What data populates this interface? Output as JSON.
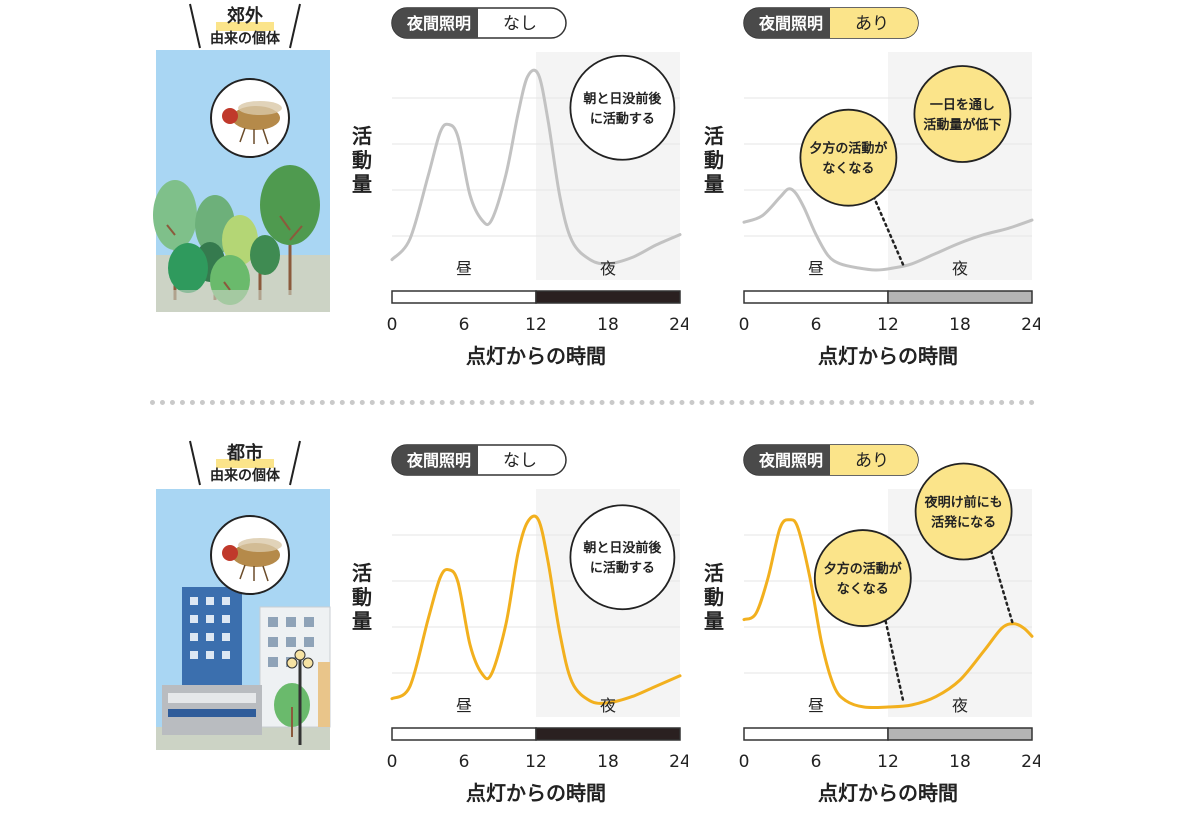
{
  "colors": {
    "suburb_curve": "#c2c2c2",
    "city_curve": "#f2b01e",
    "night_dark": "#2a2020",
    "night_gray": "#b4b4b4",
    "bubble_yellow": "#fbe48a",
    "sky": "#a9d6f3",
    "ground": "#ccd3c5",
    "badge_dark": "#4a4a4a"
  },
  "rows": [
    {
      "id": "suburb",
      "origin_title": "郊外",
      "origin_sub": "由来の個体",
      "scene": "forest",
      "panels": [
        {
          "badge_left": "夜間照明",
          "badge_right": "なし",
          "lit": false,
          "ylabel": "活動量",
          "xlabel": "点灯からの時間",
          "day_label": "昼",
          "night_label": "夜",
          "bubbles": [
            {
              "lines": [
                "朝と日没前後",
                "に活動する"
              ],
              "yellow": false,
              "cx": 19.2,
              "cy": 0.78,
              "r": 52
            }
          ],
          "pointers": []
        },
        {
          "badge_left": "夜間照明",
          "badge_right": "あり",
          "lit": true,
          "ylabel": "活動量",
          "xlabel": "点灯からの時間",
          "day_label": "昼",
          "night_label": "夜",
          "bubbles": [
            {
              "lines": [
                "夕方の活動が",
                "なくなる"
              ],
              "yellow": true,
              "cx": 8.7,
              "cy": 0.54,
              "r": 48
            },
            {
              "lines": [
                "一日を通し",
                "活動量が低下"
              ],
              "yellow": true,
              "cx": 18.2,
              "cy": 0.75,
              "r": 48
            }
          ],
          "pointers": [
            {
              "from": [
                10.6,
                0.38
              ],
              "to": [
                13.3,
                0.02
              ]
            }
          ]
        }
      ]
    },
    {
      "id": "city",
      "origin_title": "都市",
      "origin_sub": "由来の個体",
      "scene": "city",
      "panels": [
        {
          "badge_left": "夜間照明",
          "badge_right": "なし",
          "lit": false,
          "ylabel": "活動量",
          "xlabel": "点灯からの時間",
          "day_label": "昼",
          "night_label": "夜",
          "bubbles": [
            {
              "lines": [
                "朝と日没前後",
                "に活動する"
              ],
              "yellow": false,
              "cx": 19.2,
              "cy": 0.72,
              "r": 52
            }
          ],
          "pointers": []
        },
        {
          "badge_left": "夜間照明",
          "badge_right": "あり",
          "lit": true,
          "ylabel": "活動量",
          "xlabel": "点灯からの時間",
          "day_label": "昼",
          "night_label": "夜",
          "bubbles": [
            {
              "lines": [
                "夕方の活動が",
                "なくなる"
              ],
              "yellow": true,
              "cx": 9.9,
              "cy": 0.62,
              "r": 48
            },
            {
              "lines": [
                "夜明け前にも",
                "活発になる"
              ],
              "yellow": true,
              "cx": 18.3,
              "cy": 0.94,
              "r": 48
            }
          ],
          "pointers": [
            {
              "from": [
                11.7,
                0.44
              ],
              "to": [
                13.3,
                0.02
              ]
            },
            {
              "from": [
                20.6,
                0.75
              ],
              "to": [
                22.4,
                0.4
              ]
            }
          ]
        }
      ]
    }
  ],
  "chart_data": [
    {
      "type": "line",
      "row": "suburb",
      "title": "夜間照明 なし",
      "xlabel": "点灯からの時間",
      "ylabel": "活動量",
      "xlim": [
        0,
        24
      ],
      "ylim": [
        0,
        1
      ],
      "xticks": [
        "0",
        "6",
        "12",
        "18",
        "24"
      ],
      "x": [
        0,
        1.5,
        3,
        4,
        4.7,
        5.5,
        6.5,
        7.5,
        8.3,
        9.5,
        10.5,
        11.3,
        12.2,
        13,
        14,
        15,
        16.5,
        18,
        20,
        22,
        24
      ],
      "series": [
        {
          "values": [
            0.05,
            0.15,
            0.45,
            0.66,
            0.7,
            0.64,
            0.36,
            0.24,
            0.24,
            0.46,
            0.75,
            0.93,
            0.94,
            0.72,
            0.35,
            0.14,
            0.05,
            0.03,
            0.06,
            0.12,
            0.17
          ]
        }
      ]
    },
    {
      "type": "line",
      "row": "suburb",
      "title": "夜間照明 あり",
      "xlabel": "点灯からの時間",
      "ylabel": "活動量",
      "xlim": [
        0,
        24
      ],
      "ylim": [
        0,
        1
      ],
      "xticks": [
        "0",
        "6",
        "12",
        "18",
        "24"
      ],
      "x": [
        0,
        1.5,
        3,
        3.7,
        4.3,
        5,
        6,
        7,
        8,
        9.5,
        11,
        12.5,
        14,
        16,
        18,
        20,
        22,
        24
      ],
      "series": [
        {
          "values": [
            0.23,
            0.26,
            0.35,
            0.39,
            0.37,
            0.3,
            0.17,
            0.07,
            0.03,
            0.01,
            0.0,
            0.01,
            0.03,
            0.08,
            0.13,
            0.17,
            0.2,
            0.24
          ]
        }
      ]
    },
    {
      "type": "line",
      "row": "city",
      "title": "夜間照明 なし",
      "xlabel": "点灯からの時間",
      "ylabel": "活動量",
      "xlim": [
        0,
        24
      ],
      "ylim": [
        0,
        1
      ],
      "xticks": [
        "0",
        "6",
        "12",
        "18",
        "24"
      ],
      "x": [
        0,
        1.5,
        3,
        4,
        4.7,
        5.5,
        6.5,
        7.5,
        8.3,
        9.5,
        10.5,
        11.3,
        12.2,
        13,
        14,
        15,
        16.5,
        18,
        20,
        22,
        24
      ],
      "series": [
        {
          "values": [
            0.04,
            0.1,
            0.42,
            0.62,
            0.66,
            0.6,
            0.3,
            0.16,
            0.16,
            0.4,
            0.74,
            0.89,
            0.9,
            0.7,
            0.35,
            0.12,
            0.03,
            0.02,
            0.05,
            0.1,
            0.15
          ]
        }
      ]
    },
    {
      "type": "line",
      "row": "city",
      "title": "夜間照明 あり",
      "xlabel": "点灯からの時間",
      "ylabel": "活動量",
      "xlim": [
        0,
        24
      ],
      "ylim": [
        0,
        1
      ],
      "xticks": [
        "0",
        "6",
        "12",
        "18",
        "24"
      ],
      "x": [
        0,
        1,
        2,
        3,
        3.8,
        4.5,
        5.5,
        6.5,
        7.5,
        8.5,
        10,
        12,
        14,
        16,
        18,
        20,
        21.5,
        22.5,
        23.3,
        24
      ],
      "series": [
        {
          "values": [
            0.42,
            0.45,
            0.62,
            0.86,
            0.9,
            0.86,
            0.62,
            0.3,
            0.1,
            0.03,
            0.0,
            0.0,
            0.01,
            0.05,
            0.13,
            0.27,
            0.38,
            0.4,
            0.38,
            0.34
          ]
        }
      ]
    }
  ]
}
